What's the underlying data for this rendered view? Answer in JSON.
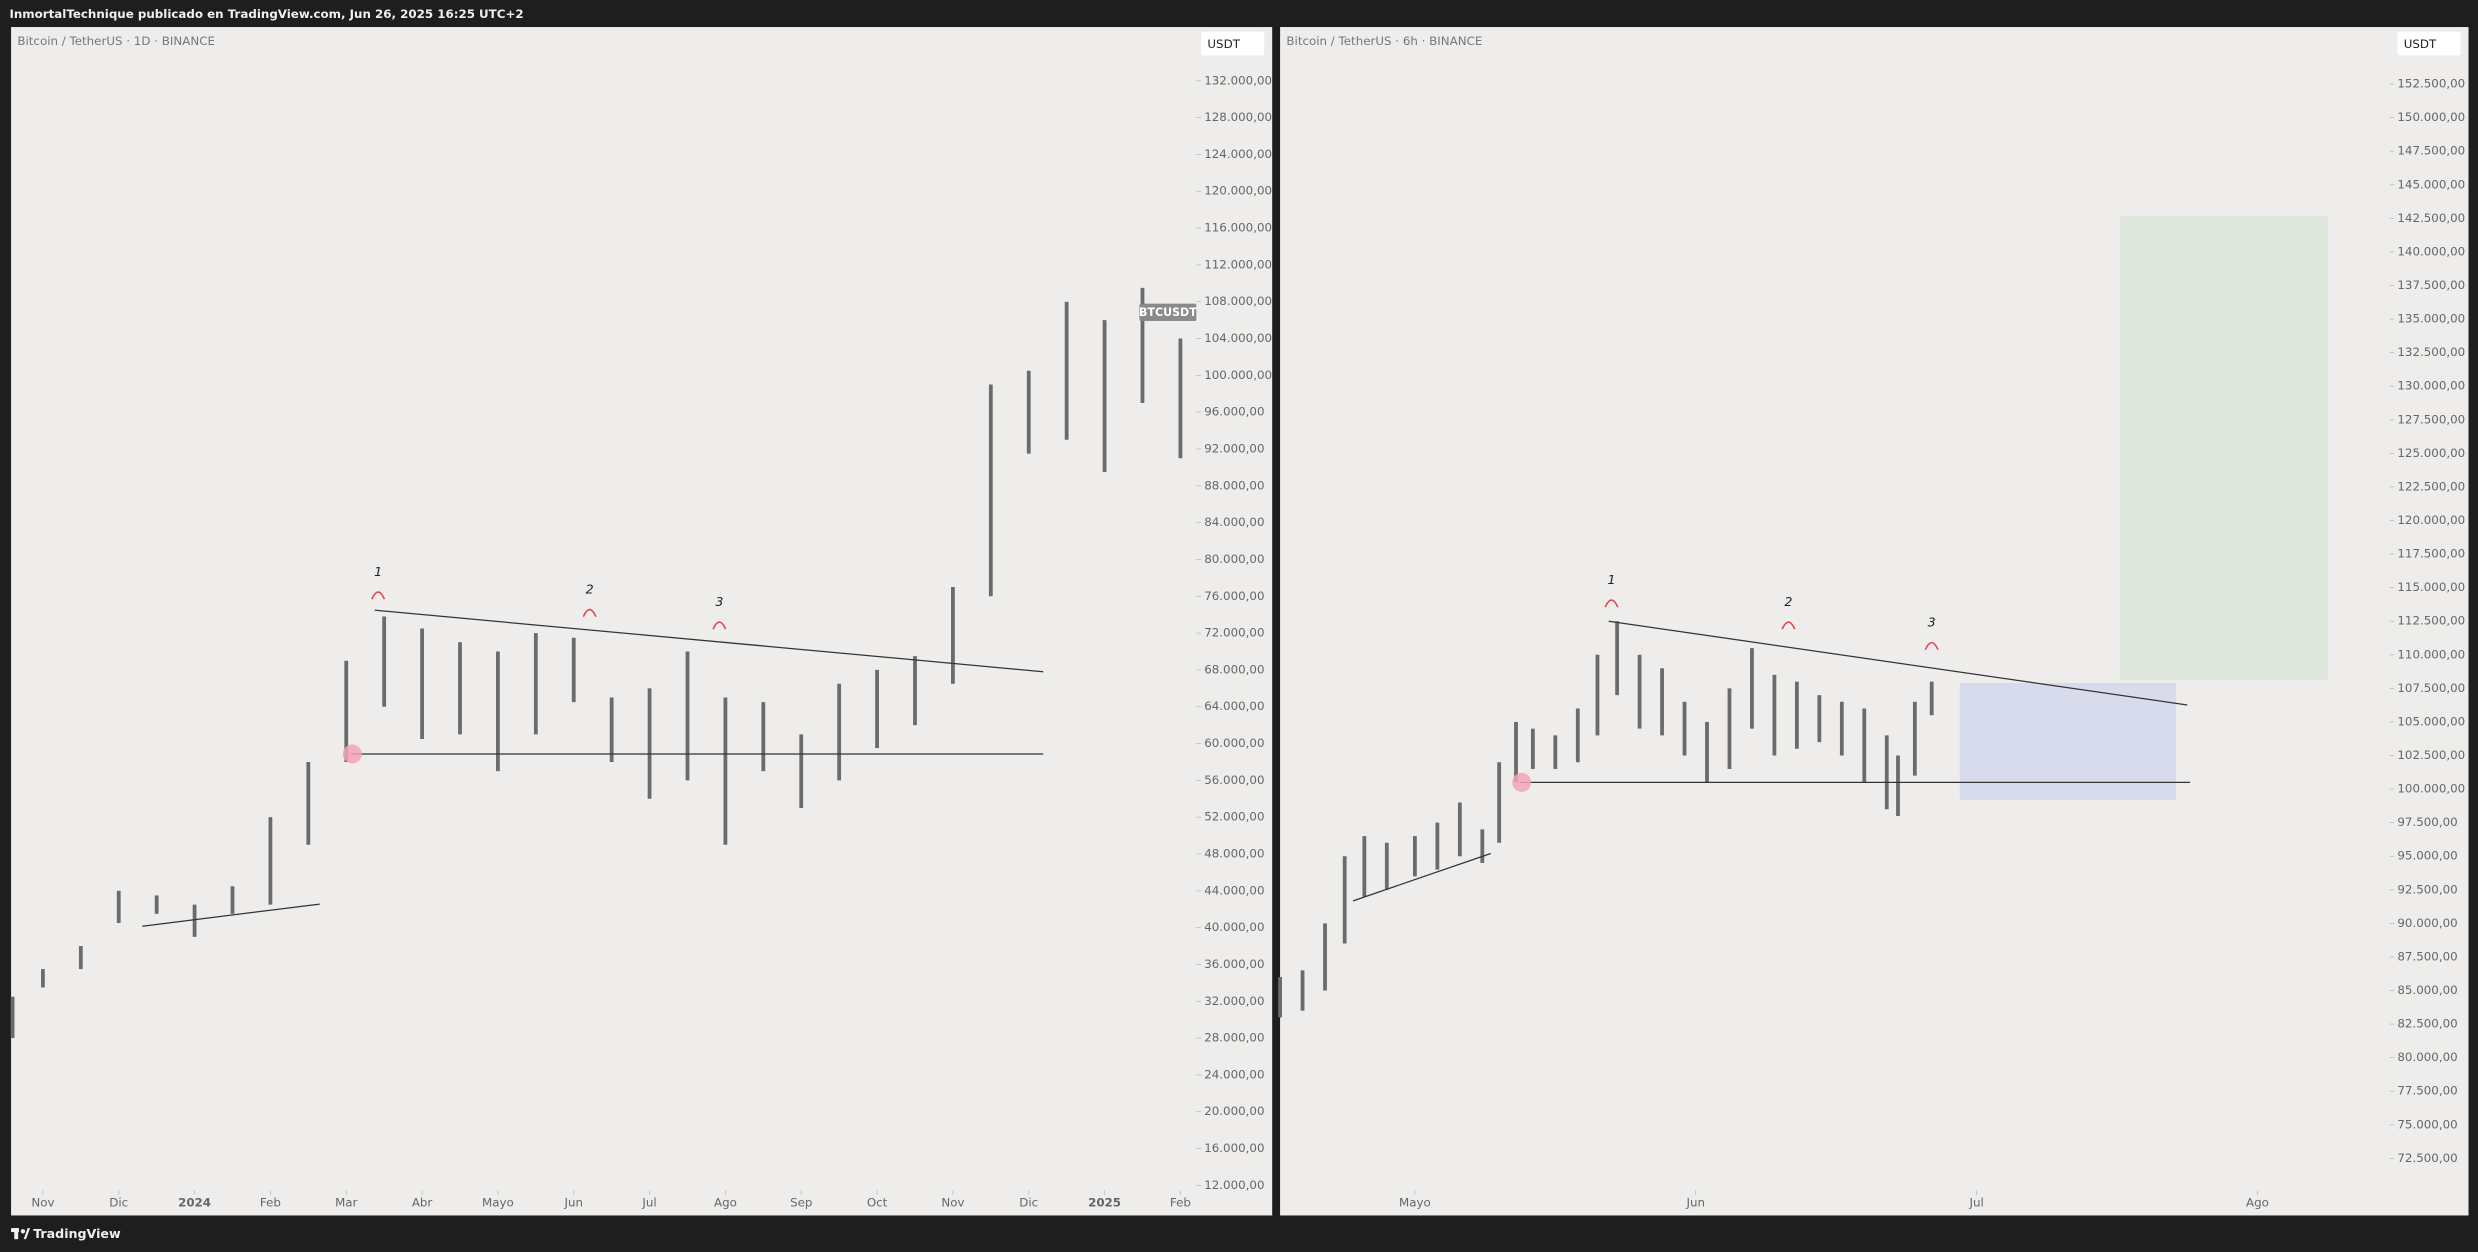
{
  "header": {
    "text": "InmortalTechnique publicado en TradingView.com, Jun 26, 2025 16:25 UTC+2"
  },
  "footer": {
    "brand": "TradingView"
  },
  "chart_data": [
    {
      "type": "ohlc",
      "title": "Bitcoin / TetherUS · 1D · BINANCE",
      "currency": "USDT",
      "last_label": "BTCUSDT",
      "color": "#6b6b6b",
      "x": [
        -0.4,
        0,
        0.5,
        1,
        1.5,
        2,
        2.5,
        3,
        3.5,
        4,
        4.5,
        5,
        5.5,
        6,
        6.5,
        7,
        7.5,
        8,
        8.5,
        9,
        9.5,
        10,
        10.5,
        11,
        11.5,
        12,
        12.5,
        13,
        13.5,
        14,
        14.5,
        15
      ],
      "lows": [
        28000,
        33500,
        35500,
        40500,
        41500,
        39000,
        41500,
        42500,
        49000,
        58000,
        64000,
        60500,
        61000,
        57000,
        61000,
        64500,
        58000,
        54000,
        56000,
        49000,
        57000,
        53000,
        56000,
        59500,
        62000,
        66500,
        76000,
        91500,
        93000,
        89500,
        97000,
        91000
      ],
      "highs": [
        32500,
        35500,
        38000,
        44000,
        43500,
        42500,
        44500,
        52000,
        58000,
        69000,
        73800,
        72500,
        71000,
        70000,
        72000,
        71500,
        65000,
        66000,
        70000,
        65000,
        64500,
        61000,
        66500,
        68000,
        69500,
        77000,
        99000,
        100500,
        108000,
        106000,
        109500,
        104000
      ],
      "xlim": [
        -0.42,
        15.21
      ],
      "ylim": [
        11650,
        135950
      ],
      "xticks": [
        {
          "value": 0,
          "label": "Nov"
        },
        {
          "value": 1,
          "label": "Dic"
        },
        {
          "value": 2,
          "label": "2024"
        },
        {
          "value": 3,
          "label": "Feb"
        },
        {
          "value": 4,
          "label": "Mar"
        },
        {
          "value": 5,
          "label": "Abr"
        },
        {
          "value": 6,
          "label": "Mayo"
        },
        {
          "value": 7,
          "label": "Jun"
        },
        {
          "value": 8,
          "label": "Jul"
        },
        {
          "value": 9,
          "label": "Ago"
        },
        {
          "value": 10,
          "label": "Sep"
        },
        {
          "value": 11,
          "label": "Oct"
        },
        {
          "value": 12,
          "label": "Nov"
        },
        {
          "value": 13,
          "label": "Dic"
        },
        {
          "value": 14,
          "label": "2025"
        },
        {
          "value": 15,
          "label": "Feb"
        }
      ],
      "yticks": [
        {
          "value": 12000,
          "label": "12.000,00"
        },
        {
          "value": 16000,
          "label": "16.000,00"
        },
        {
          "value": 20000,
          "label": "20.000,00"
        },
        {
          "value": 24000,
          "label": "24.000,00"
        },
        {
          "value": 28000,
          "label": "28.000,00"
        },
        {
          "value": 32000,
          "label": "32.000,00"
        },
        {
          "value": 36000,
          "label": "36.000,00"
        },
        {
          "value": 40000,
          "label": "40.000,00"
        },
        {
          "value": 44000,
          "label": "44.000,00"
        },
        {
          "value": 48000,
          "label": "48.000,00"
        },
        {
          "value": 52000,
          "label": "52.000,00"
        },
        {
          "value": 56000,
          "label": "56.000,00"
        },
        {
          "value": 60000,
          "label": "60.000,00"
        },
        {
          "value": 64000,
          "label": "64.000,00"
        },
        {
          "value": 68000,
          "label": "68.000,00"
        },
        {
          "value": 72000,
          "label": "72.000,00"
        },
        {
          "value": 76000,
          "label": "76.000,00"
        },
        {
          "value": 80000,
          "label": "80.000,00"
        },
        {
          "value": 84000,
          "label": "84.000,00"
        },
        {
          "value": 88000,
          "label": "88.000,00"
        },
        {
          "value": 92000,
          "label": "92.000,00"
        },
        {
          "value": 96000,
          "label": "96.000,00"
        },
        {
          "value": 100000,
          "label": "100.000,00"
        },
        {
          "value": 104000,
          "label": "104.000,00"
        },
        {
          "value": 108000,
          "label": "108.000,00"
        },
        {
          "value": 112000,
          "label": "112.000,00"
        },
        {
          "value": 116000,
          "label": "116.000,00"
        },
        {
          "value": 120000,
          "label": "120.000,00"
        },
        {
          "value": 124000,
          "label": "124.000,00"
        },
        {
          "value": 128000,
          "label": "128.000,00"
        },
        {
          "value": 132000,
          "label": "132.000,00"
        }
      ],
      "lines": [
        {
          "x": [
            4.375,
            13.19
          ],
          "y": [
            74490,
            67800
          ]
        },
        {
          "x": [
            4.06,
            13.19
          ],
          "y": [
            58870,
            58870
          ]
        },
        {
          "x": [
            1.31,
            3.65
          ],
          "y": [
            40150,
            42560
          ]
        }
      ],
      "markers": [
        {
          "x": 4.08,
          "y": 58870,
          "color": "#f2a3b9"
        }
      ],
      "pivots": [
        {
          "label": "1",
          "x": 4.42,
          "y": 76200
        },
        {
          "label": "2",
          "x": 7.21,
          "y": 74300
        },
        {
          "label": "3",
          "x": 8.92,
          "y": 72940
        }
      ],
      "zones": []
    },
    {
      "type": "ohlc",
      "title": "Bitcoin / TetherUS · 6h · BINANCE",
      "currency": "USDT",
      "color": "#6b6b6b",
      "x": [
        -0.48,
        -0.4,
        -0.32,
        -0.25,
        -0.18,
        -0.1,
        0,
        0.08,
        0.16,
        0.24,
        0.3,
        0.36,
        0.42,
        0.5,
        0.58,
        0.65,
        0.72,
        0.8,
        0.88,
        0.96,
        1.04,
        1.12,
        1.2,
        1.28,
        1.36,
        1.44,
        1.52,
        1.6,
        1.68,
        1.72,
        1.78,
        1.84
      ],
      "lows": [
        83000,
        83500,
        85000,
        88500,
        92000,
        92500,
        93500,
        94000,
        95000,
        94500,
        96000,
        100500,
        101500,
        101500,
        102000,
        104000,
        107000,
        104500,
        104000,
        102500,
        100500,
        101500,
        104500,
        102500,
        103000,
        103500,
        102500,
        100500,
        98500,
        98000,
        101000,
        105500
      ],
      "highs": [
        86000,
        86500,
        90000,
        95000,
        96500,
        96000,
        96500,
        97500,
        99000,
        97000,
        102000,
        105000,
        104500,
        104000,
        106000,
        110000,
        112500,
        110000,
        109000,
        106500,
        105000,
        107500,
        110500,
        108500,
        108000,
        107000,
        106500,
        106000,
        104000,
        102500,
        106500,
        108000
      ],
      "xlim": [
        -0.48,
        3.47
      ],
      "ylim": [
        70250,
        155450
      ],
      "xticks": [
        {
          "value": 0,
          "label": "Mayo"
        },
        {
          "value": 1,
          "label": "Jun"
        },
        {
          "value": 2,
          "label": "Jul"
        },
        {
          "value": 3,
          "label": "Ago"
        }
      ],
      "yticks": [
        {
          "value": 72500,
          "label": "72.500,00"
        },
        {
          "value": 75000,
          "label": "75.000,00"
        },
        {
          "value": 77500,
          "label": "77.500,00"
        },
        {
          "value": 80000,
          "label": "80.000,00"
        },
        {
          "value": 82500,
          "label": "82.500,00"
        },
        {
          "value": 85000,
          "label": "85.000,00"
        },
        {
          "value": 87500,
          "label": "87.500,00"
        },
        {
          "value": 90000,
          "label": "90.000,00"
        },
        {
          "value": 92500,
          "label": "92.500,00"
        },
        {
          "value": 95000,
          "label": "95.000,00"
        },
        {
          "value": 97500,
          "label": "97.500,00"
        },
        {
          "value": 100000,
          "label": "100.000,00"
        },
        {
          "value": 102500,
          "label": "102.500,00"
        },
        {
          "value": 105000,
          "label": "105.000,00"
        },
        {
          "value": 107500,
          "label": "107.500,00"
        },
        {
          "value": 110000,
          "label": "110.000,00"
        },
        {
          "value": 112500,
          "label": "112.500,00"
        },
        {
          "value": 115000,
          "label": "115.000,00"
        },
        {
          "value": 117500,
          "label": "117.500,00"
        },
        {
          "value": 120000,
          "label": "120.000,00"
        },
        {
          "value": 122500,
          "label": "122.500,00"
        },
        {
          "value": 125000,
          "label": "125.000,00"
        },
        {
          "value": 127500,
          "label": "127.500,00"
        },
        {
          "value": 130000,
          "label": "130.000,00"
        },
        {
          "value": 132500,
          "label": "132.500,00"
        },
        {
          "value": 135000,
          "label": "135.000,00"
        },
        {
          "value": 137500,
          "label": "137.500,00"
        },
        {
          "value": 140000,
          "label": "140.000,00"
        },
        {
          "value": 142500,
          "label": "142.500,00"
        },
        {
          "value": 145000,
          "label": "145.000,00"
        },
        {
          "value": 147500,
          "label": "147.500,00"
        },
        {
          "value": 150000,
          "label": "150.000,00"
        },
        {
          "value": 152500,
          "label": "152.500,00"
        }
      ],
      "lines": [
        {
          "x": [
            0.69,
            2.75
          ],
          "y": [
            112500,
            106265
          ]
        },
        {
          "x": [
            0.376,
            2.76
          ],
          "y": [
            100500,
            100500
          ]
        },
        {
          "x": [
            -0.22,
            0.27
          ],
          "y": [
            91676,
            95206
          ]
        }
      ],
      "markers": [
        {
          "x": 0.38,
          "y": 100500,
          "color": "#f2a3b9"
        }
      ],
      "pivots": [
        {
          "label": "1",
          "x": 0.7,
          "y": 113900
        },
        {
          "label": "2",
          "x": 1.33,
          "y": 112260
        },
        {
          "label": "3",
          "x": 1.84,
          "y": 110730
        }
      ],
      "zones": [
        {
          "x": [
            2.51,
            3.25
          ],
          "y": [
            108150,
            142700
          ],
          "color": "#dfe6dc"
        },
        {
          "x": [
            1.94,
            2.71
          ],
          "y": [
            99200,
            107900
          ],
          "color": "#d8dbeb"
        }
      ]
    }
  ]
}
